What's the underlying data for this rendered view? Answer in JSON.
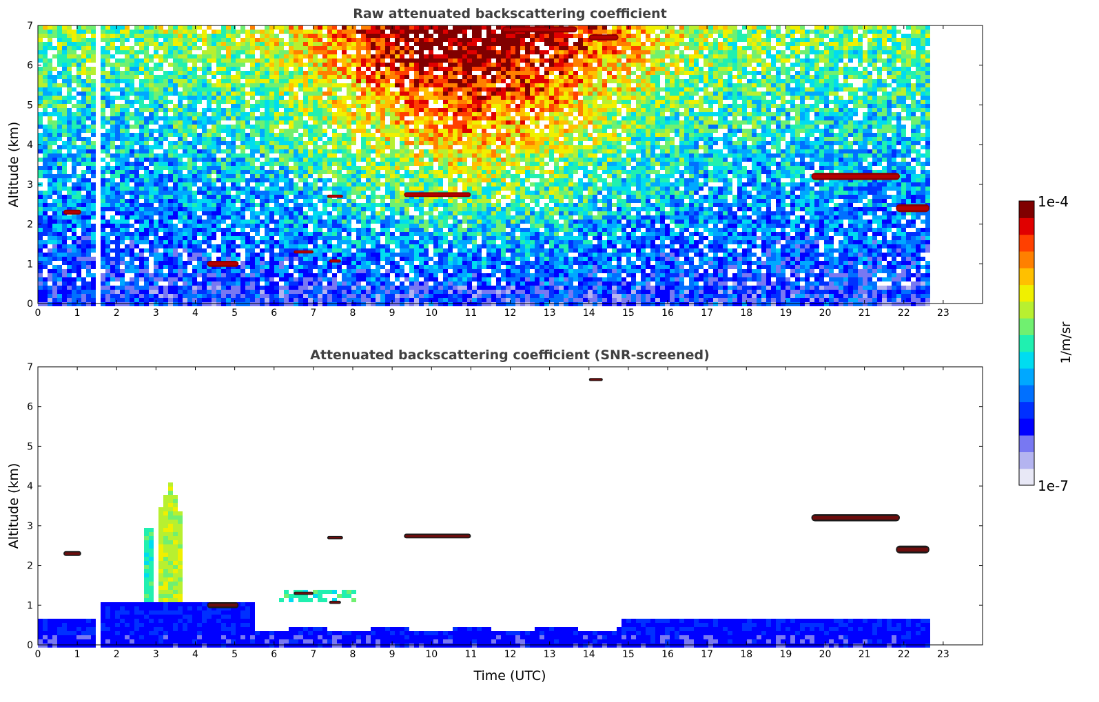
{
  "chart_data": [
    {
      "id": "raw",
      "type": "heatmap",
      "title": "Raw attenuated backscattering coefficient",
      "xlabel": "",
      "ylabel": "Altitude (km)",
      "xlim": [
        0,
        24
      ],
      "ylim": [
        0,
        7
      ],
      "xticks": [
        0,
        1,
        2,
        3,
        4,
        5,
        6,
        7,
        8,
        9,
        10,
        11,
        12,
        13,
        14,
        15,
        16,
        17,
        18,
        19,
        20,
        21,
        22,
        23
      ],
      "yticks": [
        0,
        1,
        2,
        3,
        4,
        5,
        6,
        7
      ],
      "data_end_time": 22.65,
      "missing_interval": [
        1.42,
        1.55
      ],
      "screened": false,
      "clouds": [
        {
          "t0": 0.65,
          "t1": 1.1,
          "z": 2.3,
          "thick": 0.12
        },
        {
          "t0": 4.3,
          "t1": 5.1,
          "z": 1.0,
          "thick": 0.15
        },
        {
          "t0": 6.5,
          "t1": 7.0,
          "z": 1.3,
          "thick": 0.08
        },
        {
          "t0": 7.35,
          "t1": 7.75,
          "z": 2.7,
          "thick": 0.08
        },
        {
          "t0": 7.4,
          "t1": 7.7,
          "z": 1.07,
          "thick": 0.08
        },
        {
          "t0": 9.3,
          "t1": 11.0,
          "z": 2.74,
          "thick": 0.12
        },
        {
          "t0": 11.8,
          "t1": 13.7,
          "z": 6.9,
          "thick": 0.15
        },
        {
          "t0": 14.0,
          "t1": 14.75,
          "z": 6.7,
          "thick": 0.15
        },
        {
          "t0": 19.65,
          "t1": 21.9,
          "z": 3.2,
          "thick": 0.18
        },
        {
          "t0": 21.8,
          "t1": 22.65,
          "z": 2.4,
          "thick": 0.2
        }
      ]
    },
    {
      "id": "snr",
      "type": "heatmap",
      "title": "Attenuated backscattering coefficient (SNR-screened)",
      "xlabel": "Time (UTC)",
      "ylabel": "Altitude (km)",
      "xlim": [
        0,
        24
      ],
      "ylim": [
        0,
        7
      ],
      "xticks": [
        0,
        1,
        2,
        3,
        4,
        5,
        6,
        7,
        8,
        9,
        10,
        11,
        12,
        13,
        14,
        15,
        16,
        17,
        18,
        19,
        20,
        21,
        22,
        23
      ],
      "yticks": [
        0,
        1,
        2,
        3,
        4,
        5,
        6,
        7
      ],
      "data_end_time": 22.65,
      "missing_interval": [
        1.42,
        1.55
      ],
      "screened": true,
      "clouds": [
        {
          "t0": 0.65,
          "t1": 1.1,
          "z": 2.3,
          "thick": 0.12
        },
        {
          "t0": 4.3,
          "t1": 5.1,
          "z": 1.0,
          "thick": 0.15
        },
        {
          "t0": 6.5,
          "t1": 7.0,
          "z": 1.3,
          "thick": 0.08
        },
        {
          "t0": 7.35,
          "t1": 7.75,
          "z": 2.7,
          "thick": 0.08
        },
        {
          "t0": 7.4,
          "t1": 7.7,
          "z": 1.07,
          "thick": 0.08
        },
        {
          "t0": 9.3,
          "t1": 11.0,
          "z": 2.74,
          "thick": 0.12
        },
        {
          "t0": 14.0,
          "t1": 14.35,
          "z": 6.68,
          "thick": 0.08
        },
        {
          "t0": 19.65,
          "t1": 21.9,
          "z": 3.2,
          "thick": 0.18
        },
        {
          "t0": 21.8,
          "t1": 22.65,
          "z": 2.4,
          "thick": 0.2
        }
      ]
    }
  ],
  "colorbar": {
    "min_label": "1e-7",
    "max_label": "1e-4",
    "unit": "1/m/sr",
    "colors": [
      "#e8e8f6",
      "#b4b4f0",
      "#7878f2",
      "#0000ff",
      "#0030ff",
      "#0070ff",
      "#00a8ff",
      "#00dcf0",
      "#20f0b0",
      "#70f070",
      "#b8f030",
      "#f0f000",
      "#ffc000",
      "#ff8000",
      "#ff4000",
      "#e00000",
      "#800000"
    ]
  }
}
